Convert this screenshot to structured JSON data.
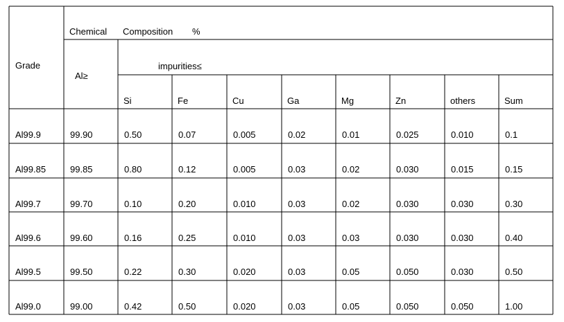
{
  "header": {
    "grade": "Grade",
    "chemical": "Chemical",
    "composition": "Composition",
    "percent": "%",
    "al": "Al≥",
    "impurities": "impurities≤",
    "columns": [
      "Si",
      "Fe",
      "Cu",
      "Ga",
      "Mg",
      "Zn",
      "others",
      "Sum"
    ]
  },
  "rows": [
    [
      "Al99.9",
      "99.90",
      "0.50",
      "0.07",
      "0.005",
      "0.02",
      "0.01",
      "0.025",
      "0.010",
      "0.1"
    ],
    [
      "Al99.85",
      "99.85",
      "0.80",
      "0.12",
      "0.005",
      "0.03",
      "0.02",
      "0.030",
      "0.015",
      "0.15"
    ],
    [
      "Al99.7",
      "99.70",
      "0.10",
      "0.20",
      "0.010",
      "0.03",
      "0.02",
      "0.030",
      "0.030",
      "0.30"
    ],
    [
      "Al99.6",
      "99.60",
      "0.16",
      "0.25",
      "0.010",
      "0.03",
      "0.03",
      "0.030",
      "0.030",
      "0.40"
    ],
    [
      "Al99.5",
      "99.50",
      "0.22",
      "0.30",
      "0.020",
      "0.03",
      "0.05",
      "0.050",
      "0.030",
      "0.50"
    ],
    [
      "Al99.0",
      "99.00",
      "0.42",
      "0.50",
      "0.020",
      "0.03",
      "0.05",
      "0.050",
      "0.050",
      "1.00"
    ]
  ]
}
